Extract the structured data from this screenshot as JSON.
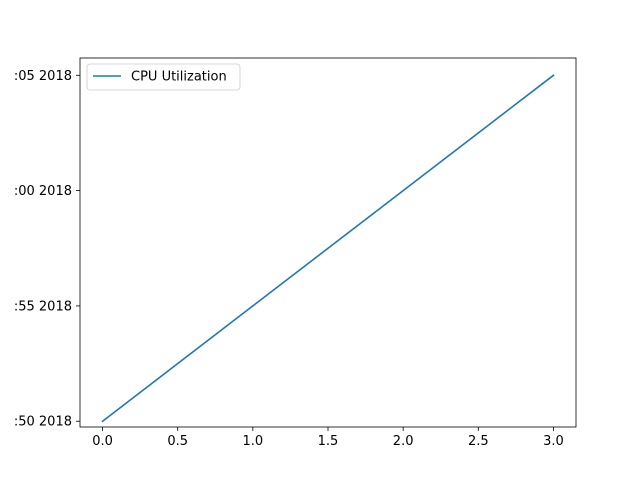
{
  "chart_data": {
    "type": "line",
    "title": "",
    "xlabel": "",
    "ylabel": "",
    "x": [
      0,
      1,
      2,
      3
    ],
    "xlim": [
      -0.15,
      3.15
    ],
    "xticks": [
      0.0,
      0.5,
      1.0,
      1.5,
      2.0,
      2.5,
      3.0
    ],
    "xtick_labels": [
      "0.0",
      "0.5",
      "1.0",
      "1.5",
      "2.0",
      "2.5",
      "3.0"
    ],
    "ylim": [
      -0.25,
      15.75
    ],
    "yticks": [
      0,
      5,
      10,
      15
    ],
    "ytick_labels": [
      ":50 2018",
      ":55 2018",
      ":00 2018",
      ":05 2018"
    ],
    "series": [
      {
        "name": "CPU Utilization",
        "color": "#1f77b4",
        "values": [
          0,
          5,
          10,
          15
        ]
      }
    ],
    "legend": {
      "position": "upper-left",
      "entries": [
        "CPU Utilization"
      ]
    },
    "grid": false
  }
}
